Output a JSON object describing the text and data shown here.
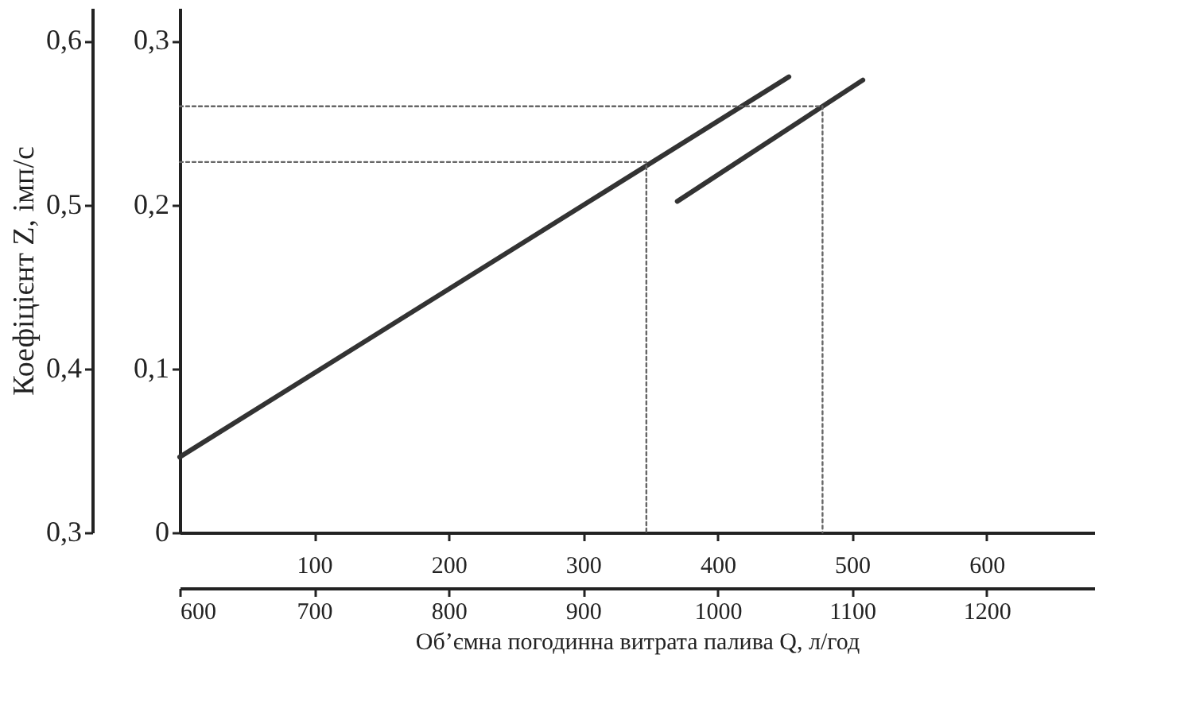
{
  "chart_data": {
    "type": "line",
    "x2label": "Об’ємна погодинна витрата палива Q, л/год",
    "y2label": "Коефіцієнт Z, імп/с",
    "xlim": [
      0,
      680
    ],
    "xticks": [
      100,
      200,
      300,
      400,
      500,
      600
    ],
    "x2lim": [
      600,
      1280
    ],
    "x2ticks": [
      600,
      700,
      800,
      900,
      1000,
      1100,
      1200
    ],
    "ylim": [
      0,
      0.32
    ],
    "yticks": [
      0,
      {
        "value": 0.1,
        "label": "0,1"
      },
      {
        "value": 0.2,
        "label": "0,2"
      },
      {
        "value": 0.3,
        "label": "0,3"
      }
    ],
    "y2lim": [
      0.3,
      0.62
    ],
    "y2ticks": [
      {
        "value": 0.3,
        "label": "0,3"
      },
      {
        "value": 0.4,
        "label": "0,4"
      },
      {
        "value": 0.5,
        "label": "0,5"
      },
      {
        "value": 0.6,
        "label": "0,6"
      }
    ],
    "grid": false,
    "series": [
      {
        "color": "#333333",
        "x": [
          0,
          453
        ],
        "values": [
          0.046,
          0.278
        ]
      },
      {
        "color": "#333333",
        "x": [
          370,
          508
        ],
        "values": [
          0.202,
          0.276
        ]
      },
      {
        "color": "#666666",
        "line_style": "dotted",
        "x": [
          0,
          347,
          347
        ],
        "values": [
          0.226,
          0.226,
          0
        ]
      },
      {
        "color": "#666666",
        "line_style": "dotted",
        "x": [
          0,
          478,
          478
        ],
        "values": [
          0.26,
          0.26,
          0
        ]
      }
    ]
  }
}
